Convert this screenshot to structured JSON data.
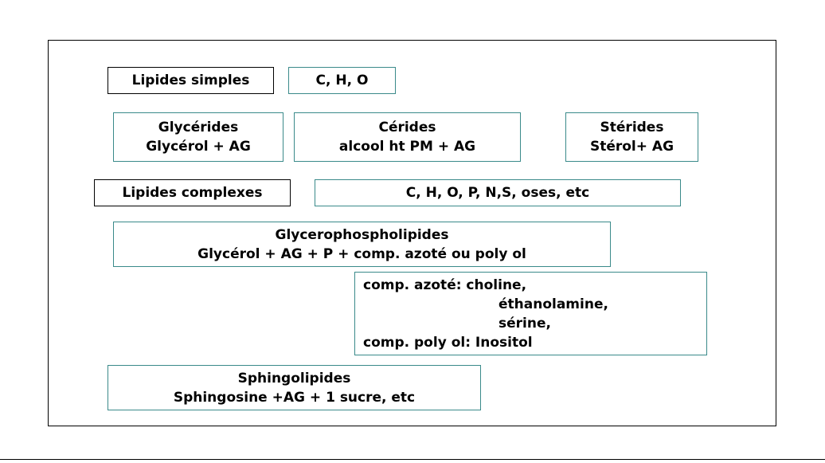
{
  "lipides_simples": {
    "label": "Lipides simples",
    "elements": "C, H, O",
    "glycerides": {
      "title": "Glycérides",
      "composition": "Glycérol + AG"
    },
    "cerides": {
      "title": "Cérides",
      "composition": "alcool ht PM + AG"
    },
    "sterides": {
      "title": "Stérides",
      "composition": "Stérol+ AG"
    }
  },
  "lipides_complexes": {
    "label": "Lipides complexes",
    "elements": "C, H, O, P, N,S, oses, etc",
    "glycerophospholipides": {
      "title": "Glycerophospholipides",
      "composition": "Glycérol + AG + P + comp. azoté ou poly ol"
    },
    "composes": {
      "azote_label": "comp. azoté: choline,",
      "azote_2": "éthanolamine,",
      "azote_3": "sérine,",
      "poly_ol": "comp. poly ol: Inositol"
    },
    "sphingolipides": {
      "title": "Sphingolipides",
      "composition": "Sphingosine +AG + 1 sucre, etc"
    }
  },
  "colors": {
    "black_border": "#000000",
    "teal_border": "#3a8a8a",
    "text": "#000000",
    "background": "#ffffff"
  }
}
